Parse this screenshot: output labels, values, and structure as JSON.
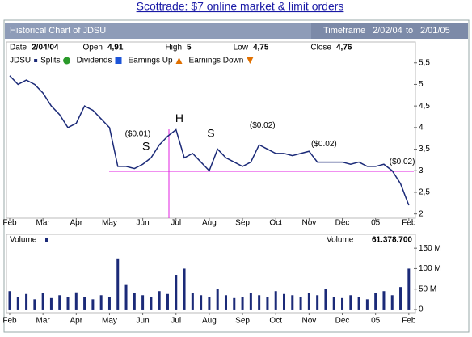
{
  "page": {
    "link": "Scottrade: $7 online market & limit orders",
    "header": {
      "title": "Historical Chart of JDSU",
      "timeframe_label": "Timeframe",
      "from": "2/02/04",
      "to_label": "to",
      "to": "2/01/05"
    },
    "info": [
      {
        "label": "Date",
        "value": "2/04/04"
      },
      {
        "label": "Open",
        "value": "4,91"
      },
      {
        "label": "High",
        "value": "5"
      },
      {
        "label": "Low",
        "value": "4,75"
      },
      {
        "label": "Close",
        "value": "4,76"
      }
    ],
    "legend": [
      "Splits",
      "Dividends",
      "Earnings Up",
      "Earnings Down"
    ]
  },
  "chart_data": [
    {
      "type": "line",
      "series": [
        {
          "name": "JDSU",
          "color": "#1b2a78",
          "values": [
            5.2,
            5.0,
            5.1,
            5.0,
            4.8,
            4.5,
            4.3,
            4.0,
            4.1,
            4.5,
            4.4,
            4.2,
            4.0,
            3.1,
            3.1,
            3.05,
            3.15,
            3.3,
            3.6,
            3.8,
            3.95,
            3.3,
            3.4,
            3.2,
            3.0,
            3.5,
            3.3,
            3.2,
            3.1,
            3.2,
            3.6,
            3.5,
            3.4,
            3.4,
            3.35,
            3.4,
            3.45,
            3.2,
            3.2,
            3.2,
            3.2,
            3.15,
            3.2,
            3.1,
            3.1,
            3.15,
            3.0,
            2.7,
            2.2
          ]
        }
      ],
      "x": [
        0,
        0.25,
        0.5,
        0.75,
        1,
        1.25,
        1.5,
        1.75,
        2,
        2.25,
        2.5,
        2.75,
        3,
        3.25,
        3.5,
        3.75,
        4,
        4.25,
        4.5,
        4.75,
        5,
        5.25,
        5.5,
        5.75,
        6,
        6.25,
        6.5,
        6.75,
        7,
        7.25,
        7.5,
        7.75,
        8,
        8.25,
        8.5,
        8.75,
        9,
        9.25,
        9.5,
        9.75,
        10,
        10.25,
        10.5,
        10.75,
        11,
        11.25,
        11.5,
        11.75,
        12
      ],
      "xlim": [
        0,
        12.15
      ],
      "xticks": [
        {
          "value": 0,
          "label": "Feb"
        },
        {
          "value": 1,
          "label": "Mar"
        },
        {
          "value": 2,
          "label": "Apr"
        },
        {
          "value": 3,
          "label": "May"
        },
        {
          "value": 4,
          "label": "Jun"
        },
        {
          "value": 5,
          "label": "Jul"
        },
        {
          "value": 6,
          "label": "Aug"
        },
        {
          "value": 7,
          "label": "Sep"
        },
        {
          "value": 8,
          "label": "Oct"
        },
        {
          "value": 9,
          "label": "Nov"
        },
        {
          "value": 10,
          "label": "Dec"
        },
        {
          "value": 11,
          "label": "05"
        },
        {
          "value": 12,
          "label": "Feb"
        }
      ],
      "ylim": [
        1.9,
        5.72
      ],
      "yticks": [
        2,
        {
          "value": 2.5,
          "label": "2,5"
        },
        3,
        {
          "value": 3.5,
          "label": "3,5"
        },
        4,
        {
          "value": 4.5,
          "label": "4,5"
        },
        5,
        {
          "value": 5.5,
          "label": "5,5"
        }
      ],
      "annotations": [
        {
          "text": "($0.01)",
          "x": 3.85,
          "y": 3.85,
          "color": "#e07000"
        },
        {
          "text": "($0.02)",
          "x": 7.6,
          "y": 4.05,
          "color": "#e07000"
        },
        {
          "text": "($0.02)",
          "x": 9.45,
          "y": 3.62,
          "color": "#e07000"
        },
        {
          "text": "($0.02)",
          "x": 11.8,
          "y": 3.2,
          "color": "#e07000"
        },
        {
          "text": "H",
          "x": 5.1,
          "y": 4.2,
          "color": "#2244cc"
        },
        {
          "text": "S",
          "x": 4.1,
          "y": 3.55,
          "color": "#2244cc"
        },
        {
          "text": "S",
          "x": 6.05,
          "y": 3.85,
          "color": "#2244cc"
        }
      ]
    },
    {
      "type": "bar",
      "title": "Volume",
      "series": [
        {
          "name": "Volume",
          "color": "#1b2a78",
          "values": [
            45,
            30,
            38,
            25,
            40,
            28,
            35,
            30,
            42,
            30,
            25,
            35,
            30,
            125,
            60,
            40,
            35,
            30,
            45,
            38,
            85,
            100,
            40,
            35,
            30,
            50,
            35,
            28,
            30,
            40,
            35,
            30,
            45,
            38,
            35,
            30,
            40,
            35,
            50,
            30,
            28,
            35,
            30,
            25,
            40,
            45,
            35,
            55,
            100
          ]
        }
      ],
      "x": [
        0,
        0.25,
        0.5,
        0.75,
        1,
        1.25,
        1.5,
        1.75,
        2,
        2.25,
        2.5,
        2.75,
        3,
        3.25,
        3.5,
        3.75,
        4,
        4.25,
        4.5,
        4.75,
        5,
        5.25,
        5.5,
        5.75,
        6,
        6.25,
        6.5,
        6.75,
        7,
        7.25,
        7.5,
        7.75,
        8,
        8.25,
        8.5,
        8.75,
        9,
        9.25,
        9.5,
        9.75,
        10,
        10.25,
        10.5,
        10.75,
        11,
        11.25,
        11.5,
        11.75,
        12
      ],
      "xlim": [
        0,
        12.15
      ],
      "xticks": [
        {
          "value": 0,
          "label": "Feb"
        },
        {
          "value": 1,
          "label": "Mar"
        },
        {
          "value": 2,
          "label": "Apr"
        },
        {
          "value": 3,
          "label": "May"
        },
        {
          "value": 4,
          "label": "Jun"
        },
        {
          "value": 5,
          "label": "Jul"
        },
        {
          "value": 6,
          "label": "Aug"
        },
        {
          "value": 7,
          "label": "Sep"
        },
        {
          "value": 8,
          "label": "Oct"
        },
        {
          "value": 9,
          "label": "Nov"
        },
        {
          "value": 10,
          "label": "Dec"
        },
        {
          "value": 11,
          "label": "05"
        },
        {
          "value": 12,
          "label": "Feb"
        }
      ],
      "ylim": [
        -8,
        184
      ],
      "yticks": [
        0,
        {
          "value": 50,
          "label": "50 M"
        },
        {
          "value": 100,
          "label": "100 M"
        },
        {
          "value": 150,
          "label": "150 M"
        }
      ],
      "last": {
        "label": "Volume",
        "value_label": "61.378.700"
      }
    }
  ]
}
